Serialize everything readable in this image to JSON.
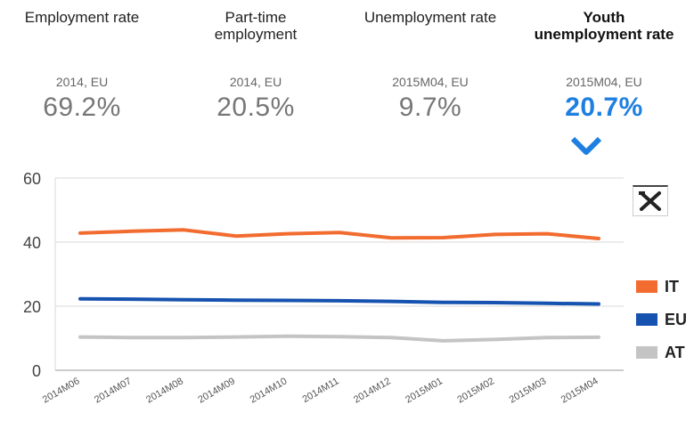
{
  "indicators": [
    {
      "label": "Employment rate",
      "meta": "2014, EU",
      "value": "69.2%"
    },
    {
      "label": "Part-time\nemployment",
      "meta": "2014, EU",
      "value": "20.5%"
    },
    {
      "label": "Unemployment rate",
      "meta": "2015M04, EU",
      "value": "9.7%"
    },
    {
      "label": "Youth\nunemployment rate",
      "meta": "2015M04, EU",
      "value": "20.7%"
    }
  ],
  "colors": {
    "accent": "#1f7fe0"
  },
  "icons": {
    "selected": "chevron-down-icon",
    "tools": "tools-icon"
  },
  "chart_data": {
    "type": "line",
    "title": "",
    "xlabel": "",
    "ylabel": "",
    "categories": [
      "2014M06",
      "2014M07",
      "2014M08",
      "2014M09",
      "2014M10",
      "2014M11",
      "2014M12",
      "2015M01",
      "2015M02",
      "2015M03",
      "2015M04"
    ],
    "ylim": [
      0,
      60
    ],
    "yticks": [
      "0",
      "20",
      "40",
      "60"
    ],
    "grid": true,
    "legend": "right",
    "series": [
      {
        "name": "IT",
        "color": "#f26b2f",
        "values": [
          42.8,
          43.4,
          43.8,
          41.9,
          42.6,
          43.0,
          41.3,
          41.4,
          42.4,
          42.6,
          41.1
        ]
      },
      {
        "name": "EU",
        "color": "#1652b0",
        "values": [
          22.3,
          22.2,
          22.0,
          21.9,
          21.8,
          21.7,
          21.5,
          21.2,
          21.1,
          20.9,
          20.7
        ]
      },
      {
        "name": "AT",
        "color": "#c4c4c4",
        "values": [
          10.4,
          10.2,
          10.2,
          10.4,
          10.6,
          10.5,
          10.2,
          9.2,
          9.6,
          10.2,
          10.3
        ]
      }
    ]
  }
}
